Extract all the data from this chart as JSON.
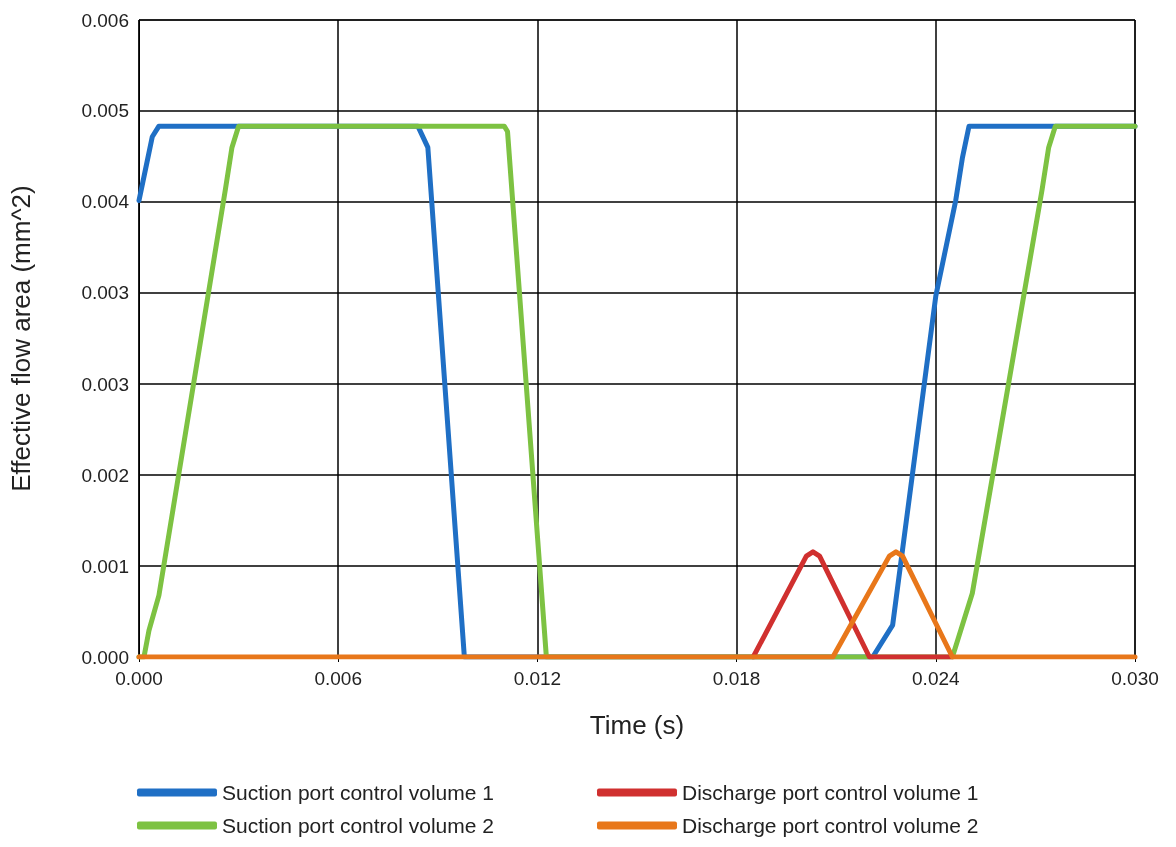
{
  "chart_data": {
    "type": "line",
    "xlabel": "Time (s)",
    "ylabel": "Effective flow area (mm^2)",
    "xlim": [
      0,
      0.03
    ],
    "ylim": [
      0,
      0.006
    ],
    "xticks": [
      {
        "value": 0,
        "label": "0.000"
      },
      {
        "value": 0.006,
        "label": "0.006"
      },
      {
        "value": 0.012,
        "label": "0.012"
      },
      {
        "value": 0.018,
        "label": "0.018"
      },
      {
        "value": 0.024,
        "label": "0.024"
      },
      {
        "value": 0.03,
        "label": "0.030"
      }
    ],
    "yticks": [
      {
        "value": 0,
        "label": "0.000"
      },
      {
        "value": 0.000857,
        "label": "0.001"
      },
      {
        "value": 0.001714,
        "label": "0.002"
      },
      {
        "value": 0.002571,
        "label": "0.003"
      },
      {
        "value": 0.003429,
        "label": "0.003"
      },
      {
        "value": 0.004286,
        "label": "0.004"
      },
      {
        "value": 0.005143,
        "label": "0.005"
      },
      {
        "value": 0.006,
        "label": "0.006"
      }
    ],
    "grid": true,
    "legend": "bottom",
    "marker": "none",
    "line_style": "solid",
    "series": [
      {
        "name": "Suction port control volume 1",
        "color": "#1f6fc5",
        "x": [
          0,
          0.0002,
          0.0004,
          0.0006,
          0.0084,
          0.0087,
          0.0098,
          0.0221,
          0.0227,
          0.024,
          0.0246,
          0.0248,
          0.025,
          0.03
        ],
        "values": [
          0.0043,
          0.0046,
          0.0049,
          0.005,
          0.005,
          0.0048,
          0,
          0,
          0.0003,
          0.0034,
          0.0043,
          0.0047,
          0.005,
          0.005
        ]
      },
      {
        "name": "Suction port control volume 2",
        "color": "#7dc242",
        "x": [
          0,
          0.00015,
          0.0003,
          0.0006,
          0.0026,
          0.0028,
          0.003,
          0.011,
          0.0111,
          0.01227,
          0.0245,
          0.0247,
          0.0251,
          0.0272,
          0.0274,
          0.0276,
          0.03
        ],
        "values": [
          0,
          0,
          0.00025,
          0.00058,
          0.0044,
          0.0048,
          0.005,
          0.005,
          0.00495,
          0,
          0,
          0.0002,
          0.0006,
          0.0044,
          0.0048,
          0.005,
          0.005
        ]
      },
      {
        "name": "Discharge port control volume 1",
        "color": "#d0302f",
        "x": [
          0.0185,
          0.0201,
          0.0203,
          0.0205,
          0.022,
          0.0245
        ],
        "values": [
          0,
          0.00095,
          0.00099,
          0.00095,
          0,
          0
        ]
      },
      {
        "name": "Discharge port control volume 2",
        "color": "#e8771a",
        "x": [
          0,
          0.0209,
          0.0226,
          0.0228,
          0.023,
          0.0245,
          0.03
        ],
        "values": [
          0,
          0,
          0.00095,
          0.00099,
          0.00095,
          0,
          0
        ]
      }
    ]
  }
}
